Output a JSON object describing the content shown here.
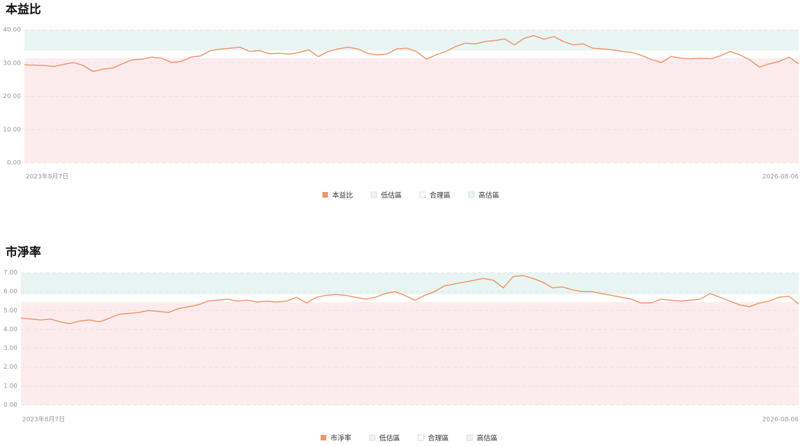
{
  "chart_data": [
    {
      "type": "line",
      "title": "本益比",
      "categories": [
        "2023年8月7日",
        null,
        null,
        null,
        null,
        null,
        null,
        null,
        null,
        null,
        null,
        null,
        null,
        null,
        null,
        null,
        null,
        null,
        null,
        null,
        null,
        null,
        null,
        null,
        null,
        null,
        null,
        null,
        null,
        null,
        null,
        null,
        null,
        null,
        null,
        null,
        null,
        null,
        null,
        null,
        null,
        null,
        null,
        null,
        null,
        null,
        null,
        null,
        null,
        null,
        null,
        null,
        null,
        null,
        null,
        null,
        null,
        null,
        null,
        null,
        null,
        null,
        null,
        null,
        null,
        null,
        null,
        null,
        null,
        null,
        null,
        null,
        null,
        null,
        null,
        null,
        null,
        null,
        null,
        "2026-08-06"
      ],
      "series": [
        {
          "name": "本益比",
          "color": "#f0956a",
          "values": [
            29.5,
            29.4,
            29.3,
            29.0,
            29.6,
            30.2,
            29.3,
            27.5,
            28.2,
            28.5,
            29.8,
            31.0,
            31.2,
            31.8,
            31.5,
            30.2,
            30.5,
            31.8,
            32.2,
            33.8,
            34.2,
            34.5,
            34.8,
            33.5,
            33.8,
            32.8,
            33.0,
            32.7,
            33.2,
            34.0,
            32.0,
            33.5,
            34.3,
            34.8,
            34.3,
            33.0,
            32.5,
            32.8,
            34.3,
            34.5,
            33.5,
            31.2,
            32.5,
            33.5,
            35.0,
            36.0,
            35.8,
            36.5,
            36.8,
            37.3,
            35.5,
            37.5,
            38.3,
            37.2,
            38.0,
            36.5,
            35.5,
            35.8,
            34.5,
            34.3,
            34.0,
            33.5,
            33.2,
            32.3,
            31.0,
            30.2,
            32.0,
            31.5,
            31.3,
            31.5,
            31.3,
            32.2,
            33.5,
            32.5,
            31.0,
            28.8,
            29.8,
            30.5,
            31.8,
            29.8
          ]
        }
      ],
      "zones": [
        {
          "name": "低估區",
          "color": "#fdecee",
          "range": [
            0,
            31.5
          ]
        },
        {
          "name": "合理區",
          "color": "#ffffff",
          "range": [
            31.5,
            33.8
          ]
        },
        {
          "name": "高估區",
          "color": "#e8f5f2",
          "range": [
            33.8,
            40
          ]
        }
      ],
      "ylim": [
        0,
        40
      ],
      "yticks": [
        {
          "value": 0,
          "label": "0.00"
        },
        {
          "value": 10,
          "label": "10.00"
        },
        {
          "value": 20,
          "label": "20.00"
        },
        {
          "value": 30,
          "label": "30.00"
        },
        {
          "value": 40,
          "label": "40.00"
        }
      ],
      "grid": true
    },
    {
      "type": "line",
      "title": "市淨率",
      "categories": [
        "2023年8月7日",
        null,
        null,
        null,
        null,
        null,
        null,
        null,
        null,
        null,
        null,
        null,
        null,
        null,
        null,
        null,
        null,
        null,
        null,
        null,
        null,
        null,
        null,
        null,
        null,
        null,
        null,
        null,
        null,
        null,
        null,
        null,
        null,
        null,
        null,
        null,
        null,
        null,
        null,
        null,
        null,
        null,
        null,
        null,
        null,
        null,
        null,
        null,
        null,
        null,
        null,
        null,
        null,
        null,
        null,
        null,
        null,
        null,
        null,
        null,
        null,
        null,
        null,
        null,
        null,
        null,
        null,
        null,
        null,
        null,
        null,
        null,
        null,
        null,
        null,
        null,
        null,
        null,
        null,
        "2026-08-06"
      ],
      "series": [
        {
          "name": "市淨率",
          "color": "#f0956a",
          "values": [
            4.6,
            4.55,
            4.5,
            4.55,
            4.4,
            4.3,
            4.45,
            4.5,
            4.4,
            4.6,
            4.8,
            4.85,
            4.9,
            5.0,
            4.95,
            4.9,
            5.1,
            5.2,
            5.3,
            5.5,
            5.55,
            5.6,
            5.5,
            5.55,
            5.45,
            5.5,
            5.45,
            5.5,
            5.7,
            5.4,
            5.7,
            5.8,
            5.85,
            5.8,
            5.7,
            5.6,
            5.7,
            5.9,
            6.0,
            5.8,
            5.55,
            5.8,
            6.0,
            6.3,
            6.4,
            6.5,
            6.6,
            6.7,
            6.6,
            6.2,
            6.8,
            6.85,
            6.7,
            6.5,
            6.2,
            6.25,
            6.1,
            6.0,
            6.0,
            5.9,
            5.8,
            5.7,
            5.6,
            5.4,
            5.4,
            5.6,
            5.55,
            5.5,
            5.55,
            5.6,
            5.9,
            5.7,
            5.5,
            5.3,
            5.2,
            5.4,
            5.5,
            5.7,
            5.75,
            5.35
          ]
        }
      ],
      "zones": [
        {
          "name": "低估區",
          "color": "#fdecee",
          "range": [
            0,
            5.45
          ]
        },
        {
          "name": "合理區",
          "color": "#ffffff",
          "range": [
            5.45,
            5.85
          ]
        },
        {
          "name": "高估區",
          "color": "#e8f5f2",
          "range": [
            5.85,
            7
          ]
        }
      ],
      "ylim": [
        0,
        7
      ],
      "yticks": [
        {
          "value": 0,
          "label": "0.00"
        },
        {
          "value": 1,
          "label": "1.00"
        },
        {
          "value": 2,
          "label": "2.00"
        },
        {
          "value": 3,
          "label": "3.00"
        },
        {
          "value": 4,
          "label": "4.00"
        },
        {
          "value": 5,
          "label": "5.00"
        },
        {
          "value": 6,
          "label": "6.00"
        },
        {
          "value": 7,
          "label": "7.00"
        }
      ],
      "grid": true
    }
  ]
}
